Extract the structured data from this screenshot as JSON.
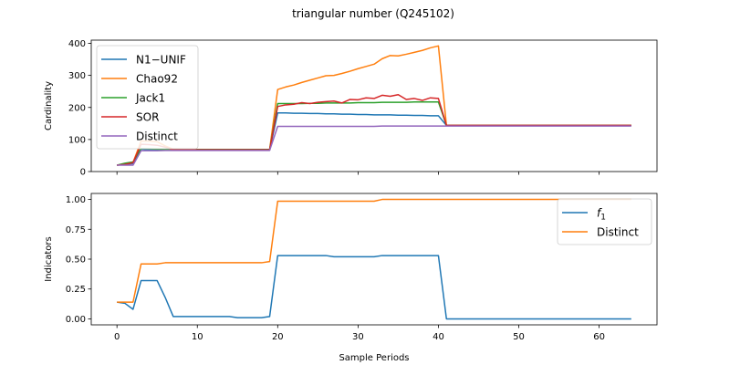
{
  "figure": {
    "title": "triangular number (Q245102)"
  },
  "chart_data": [
    {
      "type": "line",
      "ylabel": "Cardinality",
      "xlabel": "",
      "xlim": [
        -3.2,
        67.2
      ],
      "ylim": [
        0,
        410
      ],
      "x_ticks": [
        0,
        10,
        20,
        30,
        40,
        50,
        60
      ],
      "y_ticks": [
        0,
        100,
        200,
        300,
        400
      ],
      "x_tick_labels_visible": false,
      "legend": "top-left",
      "x": [
        0,
        1,
        2,
        3,
        4,
        5,
        6,
        7,
        8,
        9,
        10,
        11,
        12,
        13,
        14,
        15,
        16,
        17,
        18,
        19,
        20,
        21,
        22,
        23,
        24,
        25,
        26,
        27,
        28,
        29,
        30,
        31,
        32,
        33,
        34,
        35,
        36,
        37,
        38,
        39,
        40,
        41,
        42,
        43,
        44,
        45,
        46,
        47,
        48,
        49,
        50,
        51,
        52,
        53,
        54,
        55,
        56,
        57,
        58,
        59,
        60,
        61,
        62,
        63,
        64
      ],
      "series": [
        {
          "name": "N1−UNIF",
          "color": "#1f77b4",
          "values": [
            20,
            22,
            25,
            70,
            68,
            67,
            67,
            67,
            67,
            67,
            67,
            67,
            67,
            67,
            67,
            67,
            67,
            67,
            67,
            67,
            183,
            183,
            182,
            182,
            181,
            181,
            180,
            180,
            179,
            179,
            178,
            178,
            177,
            177,
            177,
            176,
            176,
            175,
            175,
            174,
            174,
            144,
            144,
            144,
            144,
            144,
            144,
            144,
            144,
            144,
            144,
            144,
            144,
            144,
            144,
            144,
            144,
            144,
            144,
            144,
            144,
            144,
            144,
            144,
            144
          ]
        },
        {
          "name": "Chao92",
          "color": "#ff7f0e",
          "values": [
            20,
            22,
            28,
            95,
            95,
            93,
            80,
            70,
            69,
            69,
            69,
            69,
            69,
            69,
            69,
            69,
            69,
            69,
            69,
            69,
            256,
            264,
            270,
            278,
            285,
            292,
            299,
            300,
            306,
            313,
            321,
            328,
            335,
            352,
            362,
            361,
            366,
            372,
            378,
            386,
            392,
            144,
            144,
            144,
            144,
            144,
            144,
            144,
            144,
            144,
            144,
            144,
            144,
            144,
            144,
            144,
            144,
            144,
            144,
            144,
            144,
            144,
            144,
            144,
            144
          ]
        },
        {
          "name": "Jack1",
          "color": "#2ca02c",
          "values": [
            20,
            26,
            30,
            72,
            71,
            70,
            69,
            69,
            69,
            69,
            69,
            69,
            69,
            69,
            69,
            69,
            69,
            69,
            69,
            69,
            212,
            212,
            212,
            212,
            213,
            213,
            214,
            214,
            214,
            214,
            215,
            215,
            215,
            216,
            216,
            216,
            216,
            217,
            217,
            217,
            217,
            144,
            144,
            144,
            144,
            144,
            144,
            144,
            144,
            144,
            144,
            144,
            144,
            144,
            144,
            144,
            144,
            144,
            144,
            144,
            144,
            144,
            144,
            144,
            144
          ]
        },
        {
          "name": "SOR",
          "color": "#d62728",
          "values": [
            20,
            22,
            28,
            85,
            84,
            82,
            76,
            68,
            68,
            68,
            68,
            68,
            68,
            68,
            68,
            68,
            68,
            68,
            68,
            68,
            203,
            208,
            210,
            215,
            212,
            216,
            218,
            220,
            214,
            225,
            224,
            230,
            228,
            238,
            235,
            240,
            225,
            228,
            222,
            230,
            228,
            144,
            144,
            144,
            144,
            144,
            144,
            144,
            144,
            144,
            144,
            144,
            144,
            144,
            144,
            144,
            144,
            144,
            144,
            144,
            144,
            144,
            144,
            144,
            144
          ]
        },
        {
          "name": "Distinct",
          "color": "#9467bd",
          "values": [
            20,
            20,
            20,
            65,
            65,
            65,
            66,
            66,
            66,
            66,
            66,
            66,
            66,
            66,
            66,
            66,
            66,
            66,
            66,
            66,
            141,
            141,
            141,
            141,
            141,
            141,
            141,
            141,
            141,
            141,
            141,
            141,
            141,
            142,
            142,
            142,
            142,
            142,
            142,
            142,
            142,
            142,
            142,
            142,
            142,
            142,
            142,
            142,
            142,
            142,
            142,
            142,
            142,
            142,
            142,
            142,
            142,
            142,
            142,
            142,
            142,
            142,
            142,
            142,
            142
          ]
        }
      ]
    },
    {
      "type": "line",
      "ylabel": "Indicators",
      "xlabel": "Sample Periods",
      "xlim": [
        -3.2,
        67.2
      ],
      "ylim": [
        -0.05,
        1.05
      ],
      "x_ticks": [
        0,
        10,
        20,
        30,
        40,
        50,
        60
      ],
      "y_ticks": [
        0.0,
        0.25,
        0.5,
        0.75,
        1.0
      ],
      "y_tick_labels": [
        "0.00",
        "0.25",
        "0.50",
        "0.75",
        "1.00"
      ],
      "legend": "top-right",
      "x": [
        0,
        1,
        2,
        3,
        4,
        5,
        6,
        7,
        8,
        9,
        10,
        11,
        12,
        13,
        14,
        15,
        16,
        17,
        18,
        19,
        20,
        21,
        22,
        23,
        24,
        25,
        26,
        27,
        28,
        29,
        30,
        31,
        32,
        33,
        34,
        35,
        36,
        37,
        38,
        39,
        40,
        41,
        42,
        43,
        44,
        45,
        46,
        47,
        48,
        49,
        50,
        51,
        52,
        53,
        54,
        55,
        56,
        57,
        58,
        59,
        60,
        61,
        62,
        63,
        64
      ],
      "series": [
        {
          "name": "f1",
          "color": "#1f77b4",
          "values": [
            0.14,
            0.13,
            0.08,
            0.32,
            0.32,
            0.32,
            0.18,
            0.02,
            0.02,
            0.02,
            0.02,
            0.02,
            0.02,
            0.02,
            0.02,
            0.01,
            0.01,
            0.01,
            0.01,
            0.02,
            0.53,
            0.53,
            0.53,
            0.53,
            0.53,
            0.53,
            0.53,
            0.52,
            0.52,
            0.52,
            0.52,
            0.52,
            0.52,
            0.53,
            0.53,
            0.53,
            0.53,
            0.53,
            0.53,
            0.53,
            0.53,
            0.0,
            0.0,
            0.0,
            0.0,
            0.0,
            0.0,
            0.0,
            0.0,
            0.0,
            0.0,
            0.0,
            0.0,
            0.0,
            0.0,
            0.0,
            0.0,
            0.0,
            0.0,
            0.0,
            0.0,
            0.0,
            0.0,
            0.0,
            0.0
          ]
        },
        {
          "name": "Distinct",
          "color": "#ff7f0e",
          "values": [
            0.14,
            0.14,
            0.14,
            0.46,
            0.46,
            0.46,
            0.47,
            0.47,
            0.47,
            0.47,
            0.47,
            0.47,
            0.47,
            0.47,
            0.47,
            0.47,
            0.47,
            0.47,
            0.47,
            0.48,
            0.985,
            0.985,
            0.985,
            0.985,
            0.985,
            0.985,
            0.985,
            0.985,
            0.985,
            0.985,
            0.985,
            0.985,
            0.985,
            1.0,
            1.0,
            1.0,
            1.0,
            1.0,
            1.0,
            1.0,
            1.0,
            1.0,
            1.0,
            1.0,
            1.0,
            1.0,
            1.0,
            1.0,
            1.0,
            1.0,
            1.0,
            1.0,
            1.0,
            1.0,
            1.0,
            1.0,
            1.0,
            1.0,
            1.0,
            1.0,
            1.0,
            1.0,
            1.0,
            1.0,
            1.0
          ]
        }
      ]
    }
  ]
}
